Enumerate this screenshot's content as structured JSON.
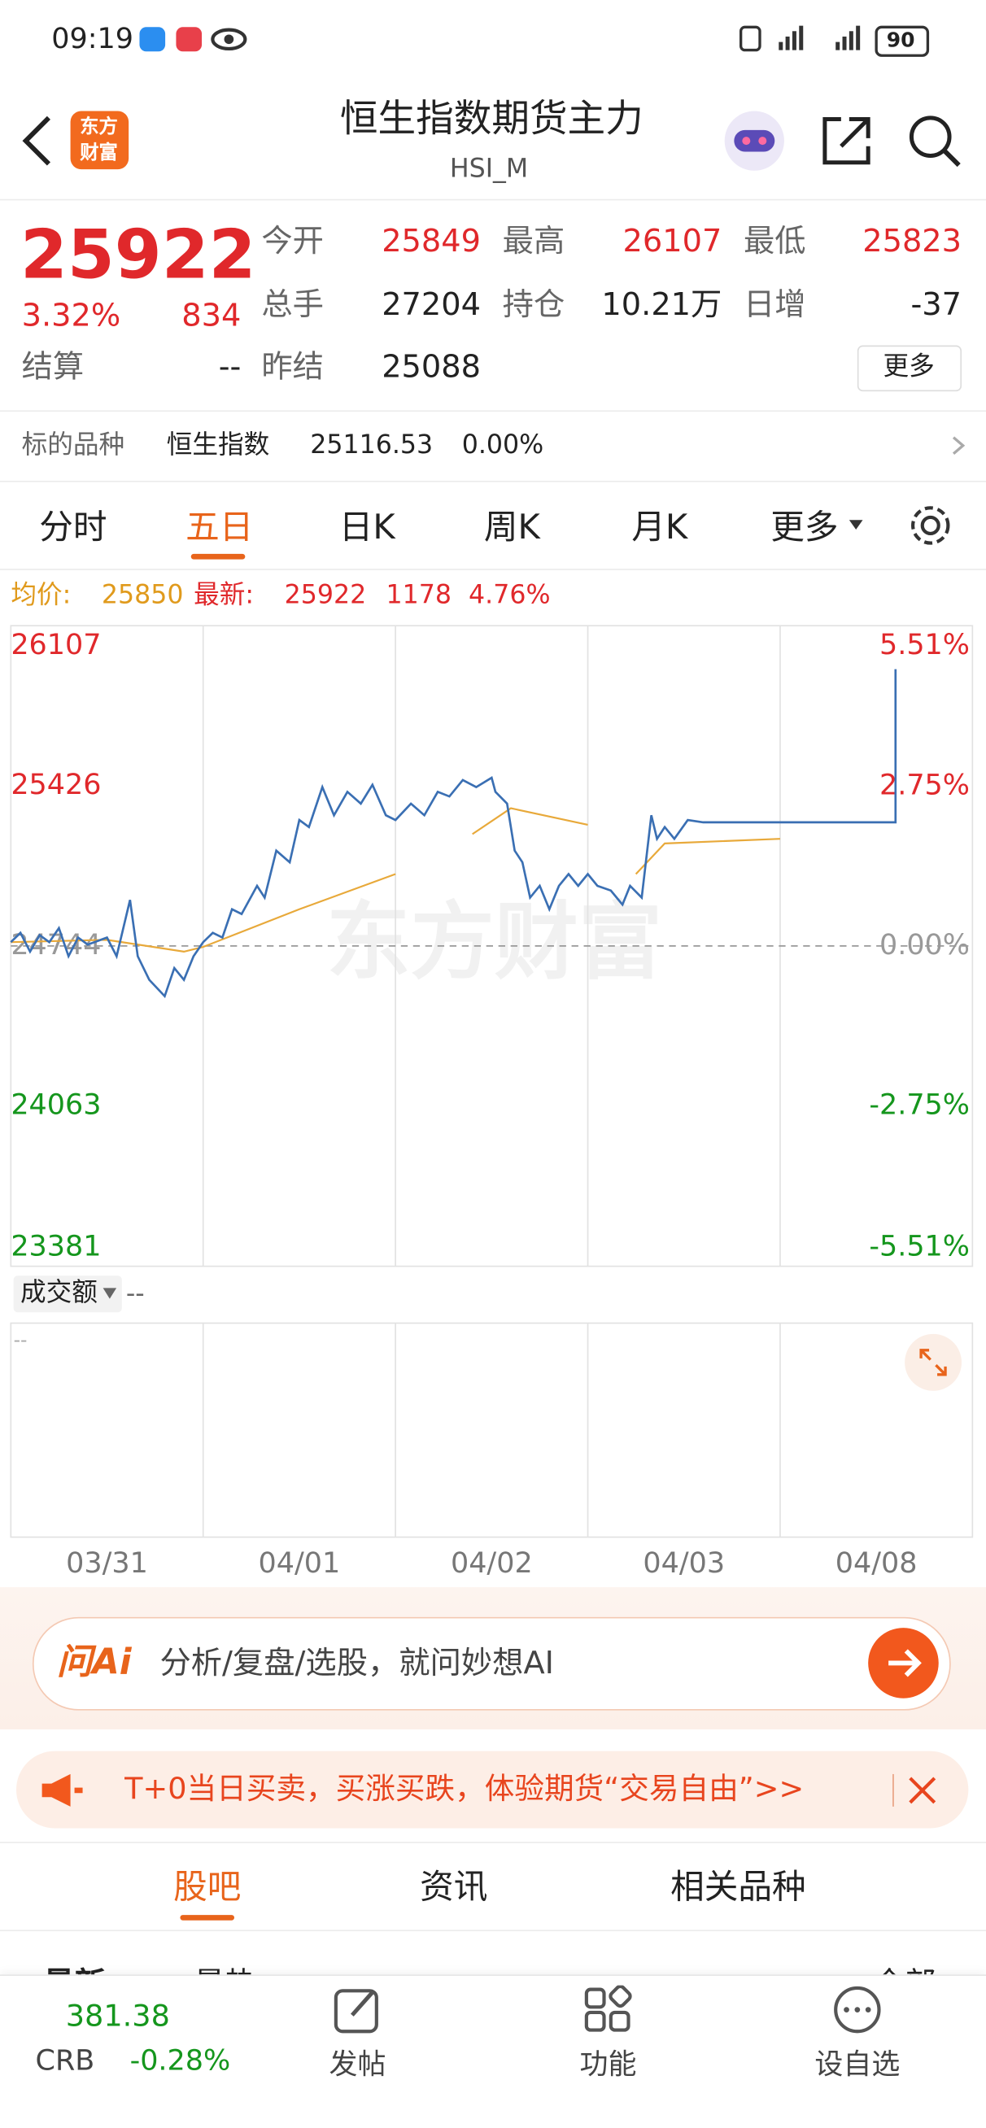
{
  "status_bar": {
    "time": "09:19",
    "battery": "90"
  },
  "header": {
    "logo": [
      "东方",
      "财富"
    ],
    "title": "恒生指数期货主力",
    "subtitle": "HSI_M"
  },
  "quote": {
    "price": "25922",
    "change_pct": "3.32%",
    "change": "834",
    "settle_label": "结算",
    "settle": "--",
    "fields": [
      {
        "label": "今开",
        "value": "25849"
      },
      {
        "label": "最高",
        "value": "26107"
      },
      {
        "label": "最低",
        "value": "25823"
      },
      {
        "label": "总手",
        "value": "27204"
      },
      {
        "label": "持仓",
        "value": "10.21万"
      },
      {
        "label": "日增",
        "value": "-37"
      },
      {
        "label": "昨结",
        "value": "25088"
      }
    ],
    "more": "更多"
  },
  "underlying": {
    "label": "标的品种",
    "name": "恒生指数",
    "value": "25116.53",
    "change": "0.00%"
  },
  "tabs": [
    "分时",
    "五日",
    "日K",
    "周K",
    "月K",
    "更多"
  ],
  "info_line": {
    "avg_label": "均价:",
    "avg": "25850",
    "latest_label": "最新:",
    "latest": "25922",
    "change": "1178",
    "pct": "4.76%"
  },
  "chart_data": {
    "type": "line",
    "watermark": "东方财富",
    "day_labels": [
      "03/31",
      "04/01",
      "04/02",
      "04/03",
      "04/08"
    ],
    "xlim": [
      0,
      5
    ],
    "ylim": [
      23381,
      26107
    ],
    "yticks": [
      23381,
      24063,
      24744,
      25426,
      26107
    ],
    "y2lim": [
      -5.51,
      5.51
    ],
    "y2ticks": [
      {
        "value": -5.51,
        "label": "-5.51%"
      },
      {
        "value": -2.75,
        "label": "-2.75%"
      },
      {
        "value": 0,
        "label": "0.00%"
      },
      {
        "value": 2.75,
        "label": "2.75%"
      },
      {
        "value": 5.51,
        "label": "5.51%"
      }
    ],
    "series": [
      {
        "color": "#3a6fb3",
        "x": [
          0,
          0.05,
          0.1,
          0.15,
          0.2,
          0.25,
          0.3,
          0.35,
          0.4,
          0.5,
          0.55,
          0.62,
          0.66,
          0.72,
          0.8,
          0.85,
          0.9,
          0.95,
          1,
          1.05,
          1.1,
          1.15,
          1.2,
          1.28,
          1.32,
          1.38,
          1.45,
          1.5,
          1.55,
          1.62,
          1.68,
          1.75,
          1.82,
          1.88,
          1.95,
          2,
          2.08,
          2.15,
          2.22,
          2.28,
          2.35,
          2.42,
          2.5,
          2.52,
          2.58,
          2.62,
          2.66,
          2.7,
          2.75,
          2.8,
          2.85,
          2.9,
          2.95,
          3,
          3.05,
          3.12,
          3.18,
          3.22,
          3.28,
          3.33,
          3.36,
          3.4,
          3.45,
          3.52,
          3.6,
          4.6,
          4.6
        ],
        "values": [
          24760,
          24800,
          24720,
          24790,
          24760,
          24820,
          24700,
          24780,
          24750,
          24780,
          24700,
          24940,
          24700,
          24600,
          24530,
          24650,
          24600,
          24700,
          24760,
          24800,
          24780,
          24900,
          24880,
          25000,
          24950,
          25150,
          25100,
          25280,
          25250,
          25420,
          25300,
          25400,
          25350,
          25430,
          25300,
          25280,
          25350,
          25300,
          25400,
          25380,
          25450,
          25420,
          25460,
          25400,
          25350,
          25150,
          25100,
          24950,
          25000,
          24900,
          25000,
          25050,
          25000,
          25050,
          25000,
          24980,
          24920,
          25000,
          24950,
          25300,
          25200,
          25250,
          25200,
          25280,
          25270,
          25270,
          25922
        ]
      },
      {
        "color": "#e8a93a",
        "x": [
          0,
          0.5,
          0.9,
          1,
          1.5,
          2,
          2,
          2.4,
          2.6,
          3,
          3,
          3.25,
          3.4,
          4
        ],
        "values": [
          24760,
          24770,
          24720,
          24740,
          24900,
          25050,
          null,
          25220,
          25330,
          25260,
          null,
          25050,
          25180,
          25200
        ]
      }
    ]
  },
  "volume": {
    "label": "成交额",
    "value": "--",
    "axis": "--"
  },
  "ai_bar": {
    "logo": "问Ai",
    "placeholder": "分析/复盘/选股，就问妙想AI"
  },
  "promo": "T+0当日买卖，买涨买跌，体验期货“交易自由”>>",
  "bottom_tabs": [
    "股吧",
    "资讯",
    "相关品种"
  ],
  "sub_tabs": [
    "最新",
    "最热",
    "全部"
  ],
  "nav": {
    "ticker": {
      "value": "381.38",
      "name": "CRB",
      "change": "-0.28%"
    },
    "items": [
      "发帖",
      "功能",
      "设自选"
    ]
  }
}
